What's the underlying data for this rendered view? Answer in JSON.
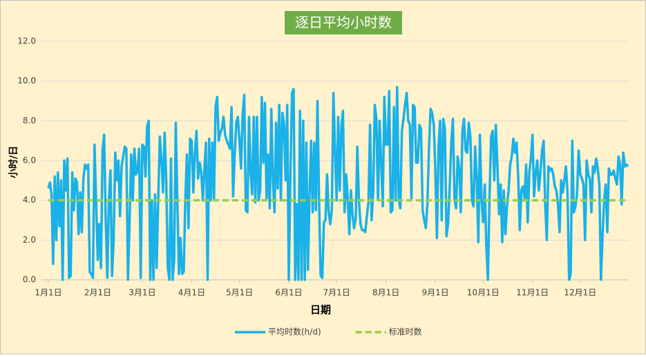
{
  "chart_data": {
    "type": "line",
    "title": "逐日平均小时数",
    "x_label": "日期",
    "y_label": "小时/日",
    "categories": [
      "1月1日",
      null,
      null,
      null,
      null,
      null,
      null,
      null,
      null,
      null,
      null,
      null,
      null,
      null,
      null,
      null,
      null,
      null,
      null,
      null,
      null,
      null,
      null,
      null,
      null,
      null,
      null,
      null,
      null,
      null,
      null,
      "2月1日",
      null,
      null,
      null,
      null,
      null,
      null,
      null,
      null,
      null,
      null,
      null,
      null,
      null,
      null,
      null,
      null,
      null,
      null,
      null,
      null,
      null,
      null,
      null,
      null,
      null,
      null,
      null,
      "3月1日",
      null,
      null,
      null,
      null,
      null,
      null,
      null,
      null,
      null,
      null,
      null,
      null,
      null,
      null,
      null,
      null,
      null,
      null,
      null,
      null,
      null,
      null,
      null,
      null,
      null,
      null,
      null,
      null,
      null,
      null,
      "4月1日",
      null,
      null,
      null,
      null,
      null,
      null,
      null,
      null,
      null,
      null,
      null,
      null,
      null,
      null,
      null,
      null,
      null,
      null,
      null,
      null,
      null,
      null,
      null,
      null,
      null,
      null,
      null,
      null,
      null,
      "5月1日",
      null,
      null,
      null,
      null,
      null,
      null,
      null,
      null,
      null,
      null,
      null,
      null,
      null,
      null,
      null,
      null,
      null,
      null,
      null,
      null,
      null,
      null,
      null,
      null,
      null,
      null,
      null,
      null,
      null,
      null,
      "6月1日",
      null,
      null,
      null,
      null,
      null,
      null,
      null,
      null,
      null,
      null,
      null,
      null,
      null,
      null,
      null,
      null,
      null,
      null,
      null,
      null,
      null,
      null,
      null,
      null,
      null,
      null,
      null,
      null,
      null,
      "7月1日",
      null,
      null,
      null,
      null,
      null,
      null,
      null,
      null,
      null,
      null,
      null,
      null,
      null,
      null,
      null,
      null,
      null,
      null,
      null,
      null,
      null,
      null,
      null,
      null,
      null,
      null,
      null,
      null,
      null,
      null,
      "8月1日",
      null,
      null,
      null,
      null,
      null,
      null,
      null,
      null,
      null,
      null,
      null,
      null,
      null,
      null,
      null,
      null,
      null,
      null,
      null,
      null,
      null,
      null,
      null,
      null,
      null,
      null,
      null,
      null,
      null,
      null,
      "9月1日",
      null,
      null,
      null,
      null,
      null,
      null,
      null,
      null,
      null,
      null,
      null,
      null,
      null,
      null,
      null,
      null,
      null,
      null,
      null,
      null,
      null,
      null,
      null,
      null,
      null,
      null,
      null,
      null,
      null,
      "10月1日",
      null,
      null,
      null,
      null,
      null,
      null,
      null,
      null,
      null,
      null,
      null,
      null,
      null,
      null,
      null,
      null,
      null,
      null,
      null,
      null,
      null,
      null,
      null,
      null,
      null,
      null,
      null,
      null,
      null,
      null,
      "11月1日",
      null,
      null,
      null,
      null,
      null,
      null,
      null,
      null,
      null,
      null,
      null,
      null,
      null,
      null,
      null,
      null,
      null,
      null,
      null,
      null,
      null,
      null,
      null,
      null,
      null,
      null,
      null,
      null,
      null,
      "12月1日",
      null,
      null,
      null,
      null,
      null,
      null,
      null,
      null,
      null,
      null,
      null,
      null,
      null,
      null,
      null,
      null,
      null,
      null,
      null,
      null,
      null,
      null,
      null,
      null,
      null,
      null,
      null,
      null,
      null,
      null
    ],
    "series": [
      {
        "name": "平均时数(h/d)",
        "color": "#1ab0e8",
        "values": [
          4.6,
          4.9,
          4.3,
          0.8,
          5.2,
          2.0,
          5.4,
          2.7,
          5.0,
          0.0,
          6.0,
          4.5,
          6.1,
          0.1,
          0.2,
          5.4,
          3.5,
          5.1,
          4.9,
          2.3,
          4.4,
          2.4,
          5.1,
          5.8,
          5.6,
          5.8,
          0.4,
          0.3,
          0.1,
          6.8,
          4.0,
          1.0,
          2.8,
          0.6,
          6.5,
          7.3,
          3.0,
          0.1,
          4.0,
          5.5,
          0.2,
          2.0,
          6.4,
          5.0,
          6.0,
          3.2,
          5.7,
          6.2,
          6.7,
          6.6,
          0.0,
          3.0,
          6.3,
          4.0,
          6.6,
          5.3,
          5.5,
          6.6,
          0.1,
          6.8,
          6.7,
          5.2,
          7.7,
          8.0,
          0.0,
          4.0,
          0.0,
          4.3,
          0.6,
          4.0,
          7.2,
          6.0,
          4.4,
          7.4,
          5.0,
          0.6,
          0.0,
          6.1,
          0.0,
          1.0,
          7.9,
          4.0,
          0.3,
          2.1,
          0.3,
          0.4,
          4.0,
          6.3,
          2.6,
          7.1,
          7.0,
          4.4,
          6.4,
          7.5,
          5.1,
          5.9,
          5.4,
          4.0,
          5.6,
          6.9,
          0.0,
          7.1,
          4.0,
          6.9,
          4.0,
          8.7,
          9.2,
          7.0,
          7.4,
          7.6,
          8.2,
          7.3,
          7.0,
          6.8,
          6.6,
          8.7,
          4.2,
          6.3,
          7.9,
          8.2,
          7.0,
          5.6,
          8.3,
          9.3,
          3.5,
          3.4,
          8.2,
          5.4,
          4.3,
          8.2,
          3.9,
          8.2,
          4.0,
          4.5,
          9.2,
          5.9,
          8.9,
          4.1,
          6.3,
          3.6,
          8.6,
          5.0,
          3.4,
          7.9,
          4.6,
          8.8,
          4.0,
          8.4,
          7.8,
          5.0,
          8.8,
          0.0,
          5.4,
          9.4,
          9.6,
          0.0,
          3.8,
          0.0,
          8.5,
          0.0,
          8.0,
          0.0,
          6.9,
          0.5,
          4.2,
          7.0,
          3.4,
          6.9,
          3.5,
          9.0,
          4.0,
          0.2,
          0.1,
          2.9,
          3.0,
          5.3,
          3.4,
          2.8,
          3.5,
          9.4,
          6.5,
          4.0,
          8.2,
          4.5,
          7.7,
          8.5,
          3.4,
          5.3,
          4.1,
          2.3,
          4.5,
          3.3,
          2.6,
          3.1,
          6.7,
          4.0,
          2.8,
          2.5,
          2.5,
          2.4,
          3.2,
          3.9,
          7.8,
          3.0,
          4.5,
          8.8,
          8.1,
          4.0,
          8.0,
          5.9,
          3.7,
          9.2,
          6.8,
          6.8,
          9.5,
          3.4,
          3.5,
          8.7,
          4.0,
          9.7,
          4.0,
          3.6,
          7.5,
          8.1,
          8.8,
          9.4,
          8.0,
          7.8,
          4.1,
          8.8,
          8.7,
          5.9,
          5.9,
          7.8,
          7.6,
          3.5,
          3.0,
          2.6,
          3.8,
          6.6,
          8.6,
          8.4,
          7.8,
          5.5,
          2.1,
          6.7,
          8.0,
          3.0,
          8.1,
          7.6,
          2.2,
          2.8,
          4.6,
          6.9,
          8.1,
          4.1,
          3.6,
          6.2,
          5.6,
          3.4,
          7.5,
          8.1,
          6.5,
          6.4,
          7.9,
          7.2,
          4.0,
          3.7,
          6.7,
          5.2,
          1.9,
          7.3,
          4.0,
          2.9,
          4.8,
          1.7,
          0.0,
          4.1,
          7.2,
          7.5,
          5.0,
          7.8,
          5.7,
          3.3,
          4.8,
          1.9,
          4.5,
          2.3,
          3.7,
          4.5,
          5.8,
          6.2,
          7.1,
          6.4,
          6.9,
          5.2,
          2.5,
          4.5,
          4.7,
          4.1,
          5.8,
          2.9,
          5.4,
          6.1,
          7.3,
          4.2,
          5.4,
          6.0,
          4.5,
          5.4,
          6.5,
          7.0,
          3.8,
          2.0,
          5.7,
          5.5,
          5.6,
          5.3,
          4.7,
          4.5,
          3.8,
          2.4,
          5.0,
          4.4,
          5.0,
          5.7,
          4.4,
          0.0,
          0.3,
          7.0,
          3.4,
          3.7,
          4.3,
          6.5,
          5.3,
          5.1,
          4.8,
          2.0,
          6.0,
          5.3,
          5.1,
          3.4,
          5.7,
          5.4,
          6.1,
          5.6,
          4.8,
          0.0,
          2.2,
          4.0,
          4.8,
          2.4,
          5.6,
          5.3,
          5.3,
          5.5,
          5.1,
          4.8,
          6.2,
          5.8,
          3.8,
          6.4,
          5.7,
          5.8,
          5.7
        ]
      },
      {
        "name": "标准时数",
        "color": "#92d050",
        "value": 4,
        "dashed": true
      }
    ],
    "ylim": [
      0,
      12
    ],
    "yticks": [
      {
        "value": 0,
        "label": "0.0"
      },
      {
        "value": 2,
        "label": "2.0"
      },
      {
        "value": 4,
        "label": "4.0"
      },
      {
        "value": 6,
        "label": "6.0"
      },
      {
        "value": 8,
        "label": "8.0"
      },
      {
        "value": 10,
        "label": "10.0"
      },
      {
        "value": 12,
        "label": "12.0"
      }
    ],
    "grid": true,
    "legend": "bottom"
  }
}
